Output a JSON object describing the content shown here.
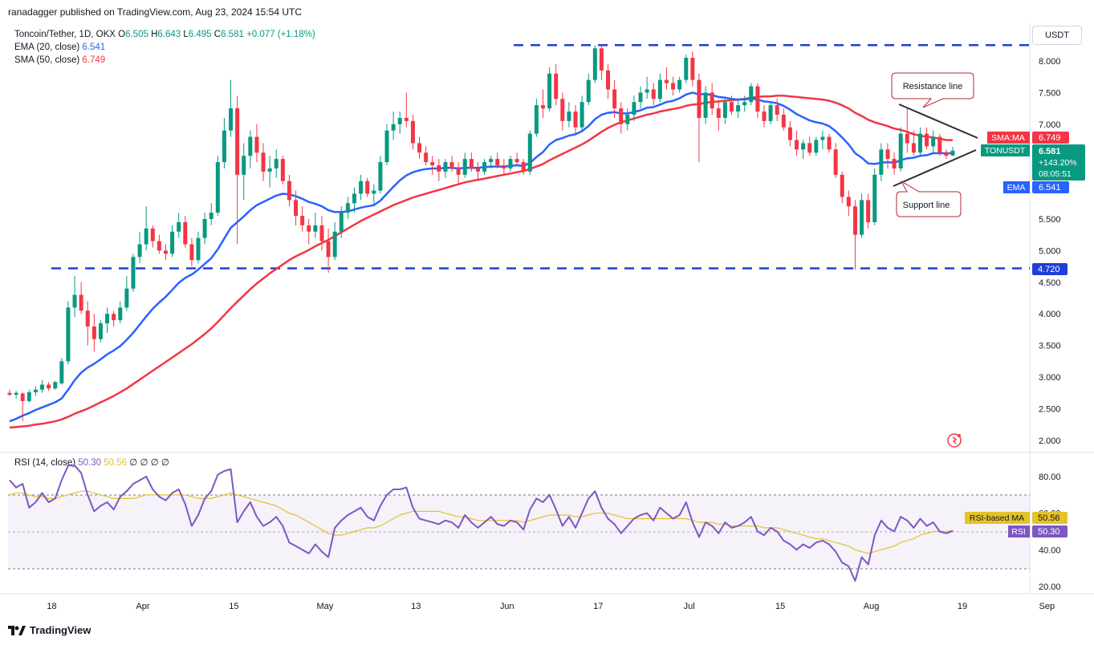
{
  "header": {
    "credit": "ranadagger published on TradingView.com, Aug 23, 2024 15:54 UTC",
    "symbol": "Toncoin/Tether, 1D, OKX",
    "o_label": "O",
    "o": "6.505",
    "h_label": "H",
    "h": "6.643",
    "l_label": "L",
    "l": "6.495",
    "c_label": "C",
    "c": "6.581",
    "change": "+0.077 (+1.18%)",
    "ema_label": "EMA (20, close)",
    "ema_value": "6.541",
    "sma_label": "SMA (50, close)",
    "sma_value": "6.749",
    "currency_button": "USDT"
  },
  "rsi_legend": {
    "label": "RSI (14, close)",
    "rsi": "50.30",
    "ma": "50.56",
    "zeros": "∅ ∅ ∅ ∅"
  },
  "price_tags": {
    "sma_name": "SMA:MA",
    "sma_value": "6.749",
    "ton_name": "TONUSDT",
    "ton_value": "6.581",
    "ton_change": "+143.20%",
    "ton_timer": "08:05:51",
    "ema_name": "EMA",
    "ema_value": "6.541",
    "level_value": "4.720"
  },
  "rsi_tags": {
    "ma_name": "RSI-based MA",
    "ma_value": "50.56",
    "rsi_name": "RSI",
    "rsi_value": "50.30"
  },
  "annotations": {
    "resistance": "Resistance line",
    "support": "Support line"
  },
  "brand": "TradingView",
  "colors": {
    "up": "#089981",
    "down": "#f23645",
    "ema": "#2962ff",
    "sma": "#f23645",
    "rsi": "#7e57c2",
    "rsi_ma": "#e6c229",
    "level": "#1e3fd6",
    "triangle": "#2a2e39"
  },
  "chart_data": {
    "type": "candlestick",
    "price_axis": {
      "ticks": [
        "8.000",
        "7.500",
        "7.000",
        "6.500",
        "6.000",
        "5.500",
        "5.000",
        "4.500",
        "4.000",
        "3.500",
        "3.000",
        "2.500",
        "2.000"
      ],
      "range": [
        1.95,
        8.35
      ]
    },
    "time_axis": {
      "ticks": [
        "18",
        "Apr",
        "15",
        "May",
        "13",
        "Jun",
        "17",
        "Jul",
        "15",
        "Aug",
        "19",
        "Sep"
      ]
    },
    "horizontal_levels": [
      8.25,
      4.72
    ],
    "ohlc": [
      [
        2.75,
        2.8,
        2.7,
        2.72
      ],
      [
        2.72,
        2.78,
        2.66,
        2.75
      ],
      [
        2.74,
        2.76,
        2.3,
        2.62
      ],
      [
        2.62,
        2.8,
        2.6,
        2.76
      ],
      [
        2.76,
        2.85,
        2.7,
        2.8
      ],
      [
        2.8,
        2.95,
        2.75,
        2.88
      ],
      [
        2.88,
        2.92,
        2.78,
        2.82
      ],
      [
        2.82,
        2.94,
        2.8,
        2.92
      ],
      [
        2.9,
        3.3,
        2.88,
        3.25
      ],
      [
        3.25,
        4.2,
        3.2,
        4.1
      ],
      [
        4.1,
        4.6,
        3.95,
        4.3
      ],
      [
        4.3,
        4.5,
        4.0,
        4.05
      ],
      [
        4.05,
        4.2,
        3.5,
        3.8
      ],
      [
        3.8,
        4.0,
        3.4,
        3.6
      ],
      [
        3.6,
        3.9,
        3.55,
        3.85
      ],
      [
        3.85,
        4.1,
        3.7,
        4.0
      ],
      [
        4.0,
        4.05,
        3.8,
        3.9
      ],
      [
        3.9,
        4.2,
        3.85,
        4.1
      ],
      [
        4.1,
        4.6,
        4.05,
        4.4
      ],
      [
        4.4,
        4.95,
        4.35,
        4.9
      ],
      [
        4.9,
        5.3,
        4.8,
        5.1
      ],
      [
        5.1,
        5.7,
        5.0,
        5.35
      ],
      [
        5.35,
        5.4,
        5.05,
        5.15
      ],
      [
        5.15,
        5.25,
        4.95,
        5.0
      ],
      [
        5.0,
        5.1,
        4.85,
        4.95
      ],
      [
        4.95,
        5.4,
        4.9,
        5.3
      ],
      [
        5.3,
        5.6,
        5.2,
        5.45
      ],
      [
        5.45,
        5.55,
        5.05,
        5.1
      ],
      [
        5.1,
        5.2,
        4.75,
        4.85
      ],
      [
        4.85,
        5.3,
        4.8,
        5.2
      ],
      [
        5.2,
        5.6,
        5.1,
        5.5
      ],
      [
        5.5,
        5.75,
        5.4,
        5.6
      ],
      [
        5.6,
        6.5,
        5.55,
        6.4
      ],
      [
        6.4,
        7.1,
        6.3,
        6.9
      ],
      [
        6.9,
        7.7,
        6.8,
        7.25
      ],
      [
        7.25,
        7.45,
        5.1,
        6.2
      ],
      [
        6.2,
        6.7,
        5.8,
        6.5
      ],
      [
        6.5,
        6.9,
        6.3,
        6.8
      ],
      [
        6.8,
        7.0,
        6.4,
        6.55
      ],
      [
        6.55,
        6.7,
        6.1,
        6.25
      ],
      [
        6.25,
        6.5,
        6.0,
        6.3
      ],
      [
        6.3,
        6.6,
        6.15,
        6.45
      ],
      [
        6.45,
        6.5,
        6.05,
        6.1
      ],
      [
        6.1,
        6.2,
        5.7,
        5.8
      ],
      [
        5.8,
        5.95,
        5.4,
        5.55
      ],
      [
        5.55,
        5.7,
        5.3,
        5.4
      ],
      [
        5.4,
        5.5,
        5.1,
        5.3
      ],
      [
        5.3,
        5.6,
        5.2,
        5.4
      ],
      [
        5.4,
        5.55,
        5.0,
        5.15
      ],
      [
        5.15,
        5.35,
        4.65,
        4.9
      ],
      [
        4.9,
        5.45,
        4.85,
        5.3
      ],
      [
        5.3,
        5.7,
        5.2,
        5.6
      ],
      [
        5.6,
        5.85,
        5.5,
        5.75
      ],
      [
        5.75,
        6.0,
        5.6,
        5.9
      ],
      [
        5.9,
        6.2,
        5.8,
        6.1
      ],
      [
        6.1,
        6.15,
        5.85,
        5.9
      ],
      [
        5.9,
        6.05,
        5.7,
        5.95
      ],
      [
        5.95,
        6.5,
        5.9,
        6.4
      ],
      [
        6.4,
        7.0,
        6.35,
        6.9
      ],
      [
        6.9,
        7.2,
        6.75,
        7.0
      ],
      [
        7.0,
        7.2,
        6.85,
        7.1
      ],
      [
        7.1,
        7.5,
        6.95,
        7.05
      ],
      [
        7.05,
        7.15,
        6.6,
        6.7
      ],
      [
        6.7,
        6.8,
        6.45,
        6.55
      ],
      [
        6.55,
        6.65,
        6.35,
        6.4
      ],
      [
        6.4,
        6.5,
        6.2,
        6.35
      ],
      [
        6.35,
        6.45,
        6.1,
        6.25
      ],
      [
        6.25,
        6.45,
        6.15,
        6.4
      ],
      [
        6.4,
        6.5,
        6.25,
        6.3
      ],
      [
        6.3,
        6.4,
        6.05,
        6.2
      ],
      [
        6.2,
        6.55,
        6.15,
        6.45
      ],
      [
        6.45,
        6.55,
        6.25,
        6.3
      ],
      [
        6.3,
        6.4,
        6.1,
        6.25
      ],
      [
        6.25,
        6.45,
        6.2,
        6.4
      ],
      [
        6.4,
        6.5,
        6.3,
        6.45
      ],
      [
        6.45,
        6.55,
        6.3,
        6.35
      ],
      [
        6.35,
        6.45,
        6.2,
        6.3
      ],
      [
        6.3,
        6.5,
        6.25,
        6.45
      ],
      [
        6.45,
        6.55,
        6.35,
        6.4
      ],
      [
        6.4,
        6.45,
        6.2,
        6.25
      ],
      [
        6.25,
        6.9,
        6.2,
        6.85
      ],
      [
        6.85,
        7.4,
        6.8,
        7.3
      ],
      [
        7.3,
        7.55,
        7.1,
        7.25
      ],
      [
        7.25,
        7.9,
        7.2,
        7.8
      ],
      [
        7.8,
        7.95,
        7.3,
        7.4
      ],
      [
        7.4,
        7.5,
        6.9,
        7.05
      ],
      [
        7.05,
        7.35,
        6.95,
        7.2
      ],
      [
        7.2,
        7.3,
        6.85,
        6.95
      ],
      [
        6.95,
        7.45,
        6.9,
        7.35
      ],
      [
        7.35,
        7.8,
        7.3,
        7.7
      ],
      [
        7.7,
        8.25,
        7.65,
        8.2
      ],
      [
        8.2,
        8.25,
        7.7,
        7.85
      ],
      [
        7.85,
        7.95,
        7.4,
        7.55
      ],
      [
        7.55,
        7.7,
        7.1,
        7.25
      ],
      [
        7.25,
        7.35,
        6.85,
        7.0
      ],
      [
        7.0,
        7.25,
        6.9,
        7.15
      ],
      [
        7.15,
        7.45,
        7.05,
        7.35
      ],
      [
        7.35,
        7.6,
        7.25,
        7.5
      ],
      [
        7.5,
        7.75,
        7.4,
        7.55
      ],
      [
        7.55,
        7.65,
        7.3,
        7.4
      ],
      [
        7.4,
        7.8,
        7.35,
        7.7
      ],
      [
        7.7,
        7.9,
        7.55,
        7.65
      ],
      [
        7.65,
        7.75,
        7.45,
        7.55
      ],
      [
        7.55,
        7.75,
        7.5,
        7.7
      ],
      [
        7.7,
        8.1,
        7.65,
        8.05
      ],
      [
        8.05,
        8.15,
        7.6,
        7.7
      ],
      [
        7.7,
        7.8,
        6.4,
        7.1
      ],
      [
        7.1,
        7.6,
        7.0,
        7.5
      ],
      [
        7.5,
        7.65,
        7.15,
        7.25
      ],
      [
        7.25,
        7.35,
        6.9,
        7.1
      ],
      [
        7.1,
        7.4,
        7.0,
        7.35
      ],
      [
        7.35,
        7.45,
        7.15,
        7.2
      ],
      [
        7.2,
        7.4,
        7.1,
        7.3
      ],
      [
        7.3,
        7.45,
        7.2,
        7.35
      ],
      [
        7.35,
        7.65,
        7.3,
        7.6
      ],
      [
        7.6,
        7.65,
        7.1,
        7.2
      ],
      [
        7.2,
        7.3,
        6.95,
        7.05
      ],
      [
        7.05,
        7.35,
        7.0,
        7.3
      ],
      [
        7.3,
        7.4,
        7.05,
        7.15
      ],
      [
        7.15,
        7.25,
        6.9,
        6.95
      ],
      [
        6.95,
        7.05,
        6.65,
        6.75
      ],
      [
        6.75,
        6.9,
        6.5,
        6.6
      ],
      [
        6.6,
        6.75,
        6.45,
        6.7
      ],
      [
        6.7,
        6.8,
        6.5,
        6.55
      ],
      [
        6.55,
        6.8,
        6.5,
        6.75
      ],
      [
        6.75,
        6.9,
        6.6,
        6.8
      ],
      [
        6.8,
        6.85,
        6.55,
        6.6
      ],
      [
        6.6,
        6.7,
        6.15,
        6.2
      ],
      [
        6.2,
        6.25,
        5.75,
        5.85
      ],
      [
        5.85,
        5.95,
        5.55,
        5.7
      ],
      [
        5.7,
        5.8,
        4.7,
        5.25
      ],
      [
        5.25,
        5.9,
        5.2,
        5.8
      ],
      [
        5.8,
        5.9,
        5.35,
        5.45
      ],
      [
        5.45,
        6.3,
        5.4,
        6.2
      ],
      [
        6.2,
        6.7,
        6.1,
        6.6
      ],
      [
        6.6,
        6.7,
        6.3,
        6.45
      ],
      [
        6.45,
        6.55,
        6.2,
        6.3
      ],
      [
        6.3,
        6.95,
        6.25,
        6.85
      ],
      [
        6.85,
        7.25,
        6.55,
        6.7
      ],
      [
        6.7,
        6.9,
        6.5,
        6.55
      ],
      [
        6.55,
        6.95,
        6.5,
        6.85
      ],
      [
        6.85,
        6.95,
        6.6,
        6.65
      ],
      [
        6.65,
        6.9,
        6.55,
        6.8
      ],
      [
        6.8,
        6.85,
        6.5,
        6.55
      ],
      [
        6.55,
        6.6,
        6.45,
        6.5
      ],
      [
        6.505,
        6.643,
        6.495,
        6.581
      ]
    ],
    "ema20": [
      2.3,
      2.34,
      2.39,
      2.43,
      2.48,
      2.52,
      2.56,
      2.6,
      2.66,
      2.8,
      2.95,
      3.07,
      3.15,
      3.21,
      3.28,
      3.36,
      3.42,
      3.49,
      3.59,
      3.7,
      3.83,
      3.96,
      4.08,
      4.18,
      4.27,
      4.38,
      4.49,
      4.57,
      4.62,
      4.7,
      4.79,
      4.88,
      5.02,
      5.19,
      5.36,
      5.45,
      5.54,
      5.64,
      5.72,
      5.77,
      5.82,
      5.87,
      5.9,
      5.89,
      5.86,
      5.82,
      5.77,
      5.74,
      5.7,
      5.64,
      5.61,
      5.61,
      5.62,
      5.65,
      5.68,
      5.7,
      5.72,
      5.79,
      5.9,
      6.01,
      6.11,
      6.19,
      6.24,
      6.27,
      6.29,
      6.3,
      6.3,
      6.31,
      6.31,
      6.3,
      6.31,
      6.31,
      6.31,
      6.32,
      6.33,
      6.33,
      6.33,
      6.34,
      6.35,
      6.34,
      6.39,
      6.48,
      6.56,
      6.68,
      6.75,
      6.78,
      6.82,
      6.84,
      6.89,
      6.97,
      7.08,
      7.15,
      7.18,
      7.19,
      7.17,
      7.17,
      7.19,
      7.22,
      7.26,
      7.27,
      7.31,
      7.35,
      7.37,
      7.41,
      7.47,
      7.5,
      7.47,
      7.48,
      7.46,
      7.43,
      7.42,
      7.4,
      7.39,
      7.39,
      7.41,
      7.39,
      7.36,
      7.35,
      7.33,
      7.29,
      7.23,
      7.16,
      7.11,
      7.06,
      7.03,
      7.01,
      6.97,
      6.89,
      6.79,
      6.68,
      6.54,
      6.47,
      6.38,
      6.37,
      6.39,
      6.4,
      6.39,
      6.43,
      6.46,
      6.47,
      6.5,
      6.51,
      6.54,
      6.54,
      6.54,
      6.541
    ],
    "sma50": [
      2.2,
      2.21,
      2.22,
      2.23,
      2.25,
      2.26,
      2.28,
      2.3,
      2.33,
      2.37,
      2.42,
      2.46,
      2.5,
      2.55,
      2.6,
      2.65,
      2.7,
      2.76,
      2.82,
      2.89,
      2.96,
      3.03,
      3.1,
      3.17,
      3.24,
      3.31,
      3.38,
      3.45,
      3.52,
      3.6,
      3.68,
      3.77,
      3.87,
      3.98,
      4.09,
      4.19,
      4.29,
      4.39,
      4.48,
      4.56,
      4.64,
      4.71,
      4.78,
      4.85,
      4.91,
      4.96,
      5.01,
      5.07,
      5.12,
      5.17,
      5.23,
      5.29,
      5.35,
      5.41,
      5.47,
      5.52,
      5.57,
      5.62,
      5.67,
      5.72,
      5.76,
      5.8,
      5.84,
      5.87,
      5.9,
      5.93,
      5.96,
      5.99,
      6.02,
      6.05,
      6.08,
      6.1,
      6.12,
      6.14,
      6.16,
      6.18,
      6.2,
      6.22,
      6.24,
      6.26,
      6.29,
      6.33,
      6.37,
      6.43,
      6.48,
      6.53,
      6.58,
      6.63,
      6.68,
      6.74,
      6.81,
      6.88,
      6.94,
      6.99,
      7.03,
      7.06,
      7.09,
      7.12,
      7.15,
      7.17,
      7.2,
      7.22,
      7.24,
      7.26,
      7.29,
      7.31,
      7.32,
      7.34,
      7.35,
      7.36,
      7.37,
      7.38,
      7.39,
      7.4,
      7.42,
      7.43,
      7.44,
      7.44,
      7.45,
      7.45,
      7.44,
      7.43,
      7.42,
      7.41,
      7.4,
      7.39,
      7.37,
      7.34,
      7.3,
      7.25,
      7.18,
      7.13,
      7.07,
      7.03,
      7.0,
      6.97,
      6.93,
      6.91,
      6.88,
      6.84,
      6.82,
      6.8,
      6.79,
      6.77,
      6.75,
      6.749
    ],
    "rsi_axis": {
      "ticks": [
        "80.00",
        "60.00",
        "40.00",
        "20.00"
      ],
      "range": [
        15,
        92
      ],
      "bands": [
        70,
        30
      ],
      "mid": 50
    },
    "rsi": [
      78,
      74,
      76,
      63,
      66,
      71,
      66,
      68,
      78,
      86,
      86,
      82,
      70,
      61,
      64,
      66,
      62,
      69,
      72,
      76,
      78,
      80,
      73,
      69,
      67,
      71,
      73,
      65,
      53,
      59,
      68,
      72,
      81,
      83,
      84,
      55,
      61,
      66,
      58,
      53,
      55,
      58,
      53,
      44,
      42,
      40,
      38,
      43,
      39,
      36,
      52,
      56,
      59,
      61,
      63,
      58,
      56,
      64,
      70,
      73,
      73,
      74,
      63,
      57,
      56,
      55,
      54,
      56,
      55,
      52,
      59,
      55,
      52,
      55,
      58,
      54,
      53,
      56,
      55,
      51,
      62,
      68,
      66,
      70,
      62,
      53,
      58,
      52,
      60,
      68,
      72,
      63,
      57,
      54,
      49,
      53,
      57,
      59,
      60,
      56,
      63,
      60,
      57,
      59,
      66,
      55,
      47,
      55,
      53,
      49,
      55,
      52,
      53,
      55,
      58,
      50,
      48,
      52,
      50,
      45,
      43,
      40,
      43,
      41,
      44,
      45,
      43,
      39,
      33,
      31,
      23,
      36,
      32,
      48,
      56,
      52,
      50,
      58,
      56,
      52,
      57,
      53,
      55,
      50,
      49,
      50.3
    ],
    "rsi_ma": [
      70,
      71,
      71,
      70,
      69,
      69,
      68,
      68,
      69,
      70,
      71,
      72,
      72,
      71,
      70,
      69,
      68,
      68,
      68,
      68,
      69,
      70,
      70,
      70,
      70,
      70,
      70,
      70,
      69,
      68,
      68,
      68,
      69,
      70,
      71,
      70,
      69,
      68,
      67,
      66,
      65,
      64,
      62,
      60,
      59,
      57,
      55,
      53,
      51,
      49,
      48,
      48,
      49,
      50,
      51,
      52,
      52,
      53,
      55,
      57,
      59,
      60,
      61,
      61,
      61,
      61,
      61,
      60,
      59,
      58,
      58,
      57,
      56,
      56,
      56,
      56,
      56,
      56,
      56,
      55,
      56,
      57,
      58,
      59,
      59,
      59,
      59,
      58,
      58,
      59,
      60,
      60,
      60,
      59,
      58,
      57,
      57,
      57,
      57,
      57,
      57,
      57,
      57,
      57,
      57,
      56,
      55,
      55,
      55,
      54,
      54,
      53,
      53,
      53,
      53,
      53,
      52,
      52,
      52,
      51,
      50,
      49,
      48,
      47,
      46,
      46,
      45,
      44,
      43,
      42,
      40,
      39,
      38,
      39,
      40,
      41,
      42,
      44,
      45,
      46,
      48,
      49,
      50,
      50,
      50,
      50.56
    ]
  }
}
